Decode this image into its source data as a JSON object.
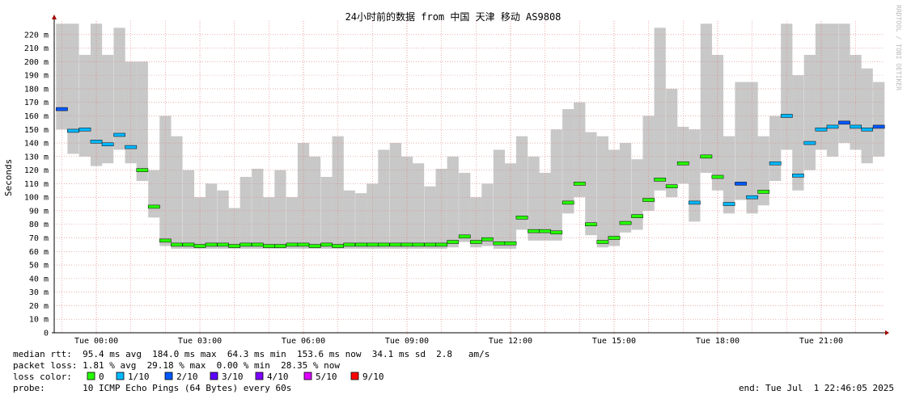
{
  "chart_data": {
    "type": "smokeping",
    "title": "24小时前的数据 from 中国 天津 移动 AS9808",
    "y_label": "Seconds",
    "watermark": "RRDTOOL / TOBI OETIKER",
    "xlim": [
      -1.22,
      22.83
    ],
    "ylim": [
      0,
      230
    ],
    "xticks": [
      {
        "value": 0,
        "label": "Tue 00:00"
      },
      {
        "value": 3,
        "label": "Tue 03:00"
      },
      {
        "value": 6,
        "label": "Tue 06:00"
      },
      {
        "value": 9,
        "label": "Tue 09:00"
      },
      {
        "value": 12,
        "label": "Tue 12:00"
      },
      {
        "value": 15,
        "label": "Tue 15:00"
      },
      {
        "value": 18,
        "label": "Tue 18:00"
      },
      {
        "value": 21,
        "label": "Tue 21:00"
      }
    ],
    "xminorticks": [
      -1,
      1,
      2,
      4,
      5,
      7,
      8,
      10,
      11,
      13,
      14,
      16,
      17,
      19,
      20,
      22
    ],
    "yticks": [
      0,
      {
        "value": 10,
        "label": "10 m"
      },
      {
        "value": 20,
        "label": "20 m"
      },
      {
        "value": 30,
        "label": "30 m"
      },
      {
        "value": 40,
        "label": "40 m"
      },
      {
        "value": 50,
        "label": "50 m"
      },
      {
        "value": 60,
        "label": "60 m"
      },
      {
        "value": 70,
        "label": "70 m"
      },
      {
        "value": 80,
        "label": "80 m"
      },
      {
        "value": 90,
        "label": "90 m"
      },
      {
        "value": 100,
        "label": "100 m"
      },
      {
        "value": 110,
        "label": "110 m"
      },
      {
        "value": 120,
        "label": "120 m"
      },
      {
        "value": 130,
        "label": "130 m"
      },
      {
        "value": 140,
        "label": "140 m"
      },
      {
        "value": 150,
        "label": "150 m"
      },
      {
        "value": 160,
        "label": "160 m"
      },
      {
        "value": 170,
        "label": "170 m"
      },
      {
        "value": 180,
        "label": "180 m"
      },
      {
        "value": 190,
        "label": "190 m"
      },
      {
        "value": 200,
        "label": "200 m"
      },
      {
        "value": 210,
        "label": "210 m"
      },
      {
        "value": 220,
        "label": "220 m"
      }
    ],
    "grid": true,
    "grid_color": "#e08080",
    "smoke_color": "#c8c8c8",
    "bar_width": 0.3333,
    "x": [
      -1,
      -0.67,
      -0.33,
      0,
      0.33,
      0.67,
      1,
      1.33,
      1.67,
      2,
      2.33,
      2.67,
      3,
      3.33,
      3.67,
      4,
      4.33,
      4.67,
      5,
      5.33,
      5.67,
      6,
      6.33,
      6.67,
      7,
      7.33,
      7.67,
      8,
      8.33,
      8.67,
      9,
      9.33,
      9.67,
      10,
      10.33,
      10.67,
      11,
      11.33,
      11.67,
      12,
      12.33,
      12.67,
      13,
      13.33,
      13.67,
      14,
      14.33,
      14.67,
      15,
      15.33,
      15.67,
      16,
      16.33,
      16.67,
      17,
      17.33,
      17.67,
      18,
      18.33,
      18.67,
      19,
      19.33,
      19.67,
      20,
      20.33,
      20.67,
      21,
      21.33,
      21.67,
      22,
      22.33,
      22.67
    ],
    "median": [
      165,
      149,
      150,
      141,
      139,
      146,
      137,
      120,
      93,
      68,
      65,
      65,
      64,
      65,
      65,
      64,
      65,
      65,
      64,
      64,
      65,
      65,
      64,
      65,
      64,
      65,
      65,
      65,
      65,
      65,
      65,
      65,
      65,
      65,
      67,
      71,
      67,
      69,
      66,
      66,
      85,
      75,
      75,
      74,
      96,
      110,
      80,
      67,
      70,
      81,
      86,
      98,
      113,
      108,
      125,
      96,
      130,
      115,
      95,
      110,
      100,
      104,
      125,
      160,
      116,
      140,
      150,
      152,
      155,
      152,
      150,
      152
    ],
    "median_colors": [
      "#0059ff",
      "#00b8ff",
      "#00b8ff",
      "#00b8ff",
      "#00b8ff",
      "#00b8ff",
      "#00b8ff",
      "#26ff00",
      "#26ff00",
      "#26ff00",
      "#26ff00",
      "#26ff00",
      "#26ff00",
      "#26ff00",
      "#26ff00",
      "#26ff00",
      "#26ff00",
      "#26ff00",
      "#26ff00",
      "#26ff00",
      "#26ff00",
      "#26ff00",
      "#26ff00",
      "#26ff00",
      "#26ff00",
      "#26ff00",
      "#26ff00",
      "#26ff00",
      "#26ff00",
      "#26ff00",
      "#26ff00",
      "#26ff00",
      "#26ff00",
      "#26ff00",
      "#26ff00",
      "#26ff00",
      "#26ff00",
      "#26ff00",
      "#26ff00",
      "#26ff00",
      "#26ff00",
      "#26ff00",
      "#26ff00",
      "#26ff00",
      "#26ff00",
      "#26ff00",
      "#26ff00",
      "#26ff00",
      "#26ff00",
      "#26ff00",
      "#26ff00",
      "#26ff00",
      "#26ff00",
      "#26ff00",
      "#26ff00",
      "#00b8ff",
      "#26ff00",
      "#26ff00",
      "#00b8ff",
      "#0059ff",
      "#00b8ff",
      "#26ff00",
      "#00b8ff",
      "#00b8ff",
      "#00b8ff",
      "#00b8ff",
      "#00b8ff",
      "#00b8ff",
      "#0059ff",
      "#00b8ff",
      "#00b8ff",
      "#0059ff"
    ],
    "smoke_max": [
      228,
      228,
      205,
      228,
      205,
      225,
      200,
      200,
      120,
      160,
      145,
      120,
      100,
      110,
      105,
      92,
      115,
      121,
      100,
      120,
      100,
      140,
      130,
      115,
      145,
      105,
      103,
      110,
      135,
      140,
      130,
      125,
      108,
      121,
      130,
      118,
      100,
      110,
      135,
      125,
      145,
      130,
      118,
      150,
      165,
      170,
      148,
      145,
      135,
      140,
      128,
      160,
      225,
      180,
      152,
      150,
      228,
      205,
      145,
      185,
      185,
      145,
      160,
      228,
      190,
      205,
      228,
      228,
      228,
      205,
      195,
      185
    ],
    "smoke_min": [
      150,
      132,
      130,
      123,
      125,
      135,
      125,
      112,
      85,
      64,
      62,
      62,
      62,
      62,
      62,
      62,
      62,
      62,
      62,
      62,
      62,
      62,
      62,
      62,
      62,
      62,
      62,
      62,
      62,
      62,
      62,
      62,
      62,
      62,
      63,
      67,
      63,
      64,
      62,
      62,
      76,
      68,
      68,
      68,
      88,
      100,
      72,
      63,
      64,
      74,
      76,
      90,
      105,
      100,
      110,
      82,
      118,
      105,
      88,
      98,
      88,
      94,
      112,
      135,
      105,
      120,
      135,
      130,
      140,
      135,
      125,
      130
    ]
  },
  "footer": {
    "median_rtt": "median rtt:  95.4 ms avg  184.0 ms max  64.3 ms min  153.6 ms now  34.1 ms sd  2.8   am/s",
    "packet_loss": "packet loss: 1.81 % avg  29.18 % max  0.00 % min  28.35 % now",
    "loss_color_label": "loss color:",
    "loss_colors": [
      {
        "label": "0",
        "color": "#26ff00"
      },
      {
        "label": "1/10",
        "color": "#00b8ff"
      },
      {
        "label": "2/10",
        "color": "#0059ff"
      },
      {
        "label": "3/10",
        "color": "#5e00ff"
      },
      {
        "label": "4/10",
        "color": "#7e00ff"
      },
      {
        "label": "5/10",
        "color": "#dd00ff"
      },
      {
        "label": "9/10",
        "color": "#ff0000"
      }
    ],
    "probe": "probe:       10 ICMP Echo Pings (64 Bytes) every 60s",
    "end": "end: Tue Jul  1 22:46:05 2025"
  }
}
